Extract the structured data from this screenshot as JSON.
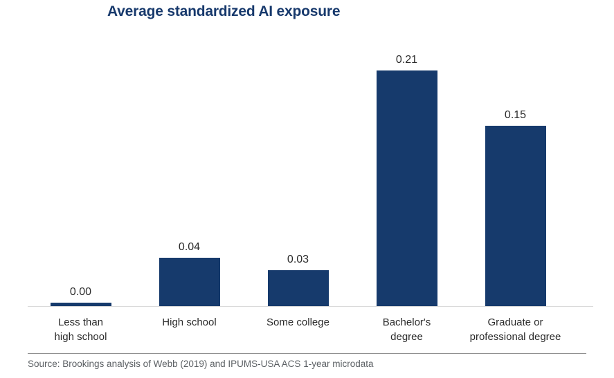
{
  "title": "Average standardized AI exposure",
  "source": "Source: Brookings analysis of Webb (2019) and IPUMS-USA ACS 1-year microdata",
  "colors": {
    "bar": "#163A6C",
    "title": "#17396C",
    "label": "#2B2B2B",
    "source": "#5C6064",
    "axis": "#DADADA",
    "divider": "#8F8F8F"
  },
  "chart_data": {
    "type": "bar",
    "title": "Average standardized AI exposure",
    "categories": [
      "Less than high school",
      "High school",
      "Some college",
      "Bachelor's degree",
      "Graduate or professional degree"
    ],
    "category_lines": [
      [
        "Less than",
        "high school"
      ],
      [
        "High school"
      ],
      [
        "Some college"
      ],
      [
        "Bachelor's",
        "degree"
      ],
      [
        "Graduate or",
        "professional degree"
      ]
    ],
    "values": [
      0.0,
      0.04,
      0.03,
      0.21,
      0.15
    ],
    "value_labels": [
      "0.00",
      "0.04",
      "0.03",
      "0.21",
      "0.15"
    ],
    "xlabel": "",
    "ylabel": "",
    "ylim": [
      0,
      0.22
    ],
    "grid": false,
    "legend": false,
    "bar_color": "#163A6C",
    "source": "Source: Brookings analysis of Webb (2019) and IPUMS-USA ACS 1-year microdata"
  }
}
